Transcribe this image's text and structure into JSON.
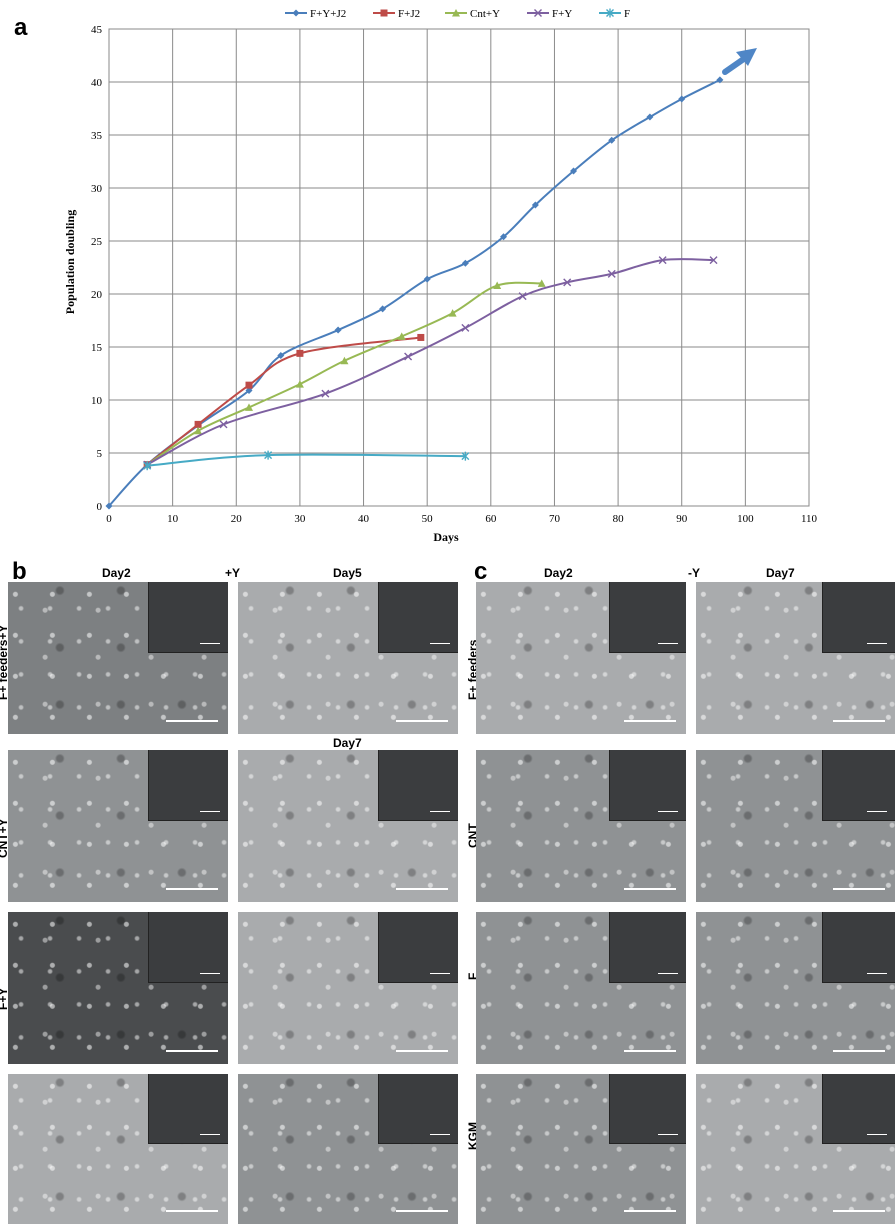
{
  "panels": {
    "a": "a",
    "b": "b",
    "c": "c"
  },
  "chart_data": {
    "type": "line",
    "title": "",
    "xlabel": "Days",
    "ylabel": "Population doubling",
    "xlim": [
      0,
      110
    ],
    "ylim": [
      0,
      45
    ],
    "xticks": [
      0,
      10,
      20,
      30,
      40,
      50,
      60,
      70,
      80,
      90,
      100,
      110
    ],
    "yticks": [
      0,
      5,
      10,
      15,
      20,
      25,
      30,
      35,
      40,
      45
    ],
    "grid": true,
    "legend_position": "top",
    "series": [
      {
        "name": "F+Y+J2",
        "color": "#4a7ebb",
        "marker": "diamond",
        "x": [
          0,
          6,
          14,
          22,
          27,
          36,
          43,
          50,
          56,
          62,
          67,
          73,
          79,
          85,
          90,
          96
        ],
        "y": [
          0,
          3.9,
          7.6,
          10.9,
          14.2,
          16.6,
          18.6,
          21.4,
          22.9,
          25.4,
          28.4,
          31.6,
          34.5,
          36.7,
          38.4,
          40.2
        ]
      },
      {
        "name": "F+J2",
        "color": "#be4b48",
        "marker": "square",
        "x": [
          6,
          14,
          22,
          30,
          49
        ],
        "y": [
          3.9,
          7.7,
          11.4,
          14.4,
          15.9
        ]
      },
      {
        "name": "Cnt+Y",
        "color": "#98b954",
        "marker": "triangle",
        "x": [
          6,
          14,
          22,
          30,
          37,
          46,
          54,
          61,
          68
        ],
        "y": [
          3.9,
          7.1,
          9.3,
          11.5,
          13.7,
          16.0,
          18.2,
          20.8,
          21.0
        ]
      },
      {
        "name": "F+Y",
        "color": "#7d60a0",
        "marker": "x",
        "x": [
          6,
          18,
          34,
          47,
          56,
          65,
          72,
          79,
          87,
          95
        ],
        "y": [
          3.9,
          7.7,
          10.6,
          14.1,
          16.8,
          19.8,
          21.1,
          21.9,
          23.2,
          23.2
        ]
      },
      {
        "name": "F",
        "color": "#46aac5",
        "marker": "asterisk",
        "x": [
          6,
          25,
          56
        ],
        "y": [
          3.8,
          4.8,
          4.7
        ]
      }
    ],
    "annotation": "arrow-up-right"
  },
  "panel_b": {
    "columns": [
      "Day2",
      "+Y",
      "Day5",
      "Day7"
    ],
    "rows": [
      "F+ feeders+Y",
      "CNT+Y",
      "F+Y",
      ""
    ]
  },
  "panel_c": {
    "columns": [
      "Day2",
      "-Y",
      "Day7"
    ],
    "rows": [
      "F+ feeders",
      "CNT",
      "F",
      "KGM"
    ]
  }
}
